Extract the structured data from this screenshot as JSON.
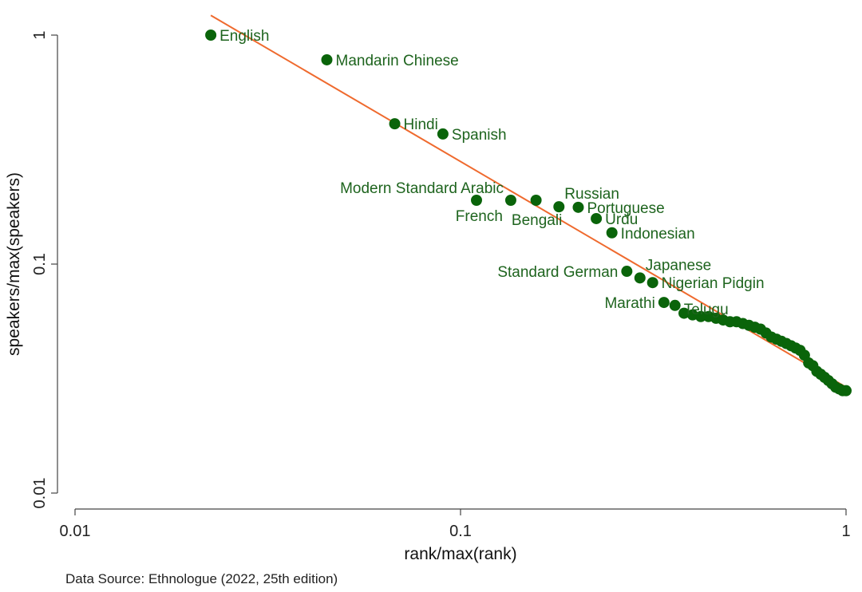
{
  "chart_data": {
    "type": "scatter",
    "xlabel": "rank/max(rank)",
    "ylabel": "speakers/max(speakers)",
    "x_scale": "log",
    "y_scale": "log",
    "xlim": [
      0.01,
      1
    ],
    "ylim": [
      0.01,
      1
    ],
    "x_ticks": [
      {
        "value": 0.01,
        "label": "0.01"
      },
      {
        "value": 0.1,
        "label": "0.1"
      },
      {
        "value": 1,
        "label": "1"
      }
    ],
    "y_ticks": [
      {
        "value": 0.01,
        "label": "0.01"
      },
      {
        "value": 0.1,
        "label": "0.1"
      },
      {
        "value": 1,
        "label": "1"
      }
    ],
    "grid": false,
    "colors": {
      "points": "#0a640a",
      "labels": "#1e641e",
      "fit_line": "#ef6a2e"
    },
    "labeled_points": [
      {
        "label": "English",
        "x": 0.0225,
        "y": 1.0,
        "anchor": "start"
      },
      {
        "label": "Mandarin Chinese",
        "x": 0.045,
        "y": 0.78,
        "anchor": "start"
      },
      {
        "label": "Hindi",
        "x": 0.0675,
        "y": 0.41,
        "anchor": "start"
      },
      {
        "label": "Spanish",
        "x": 0.09,
        "y": 0.37,
        "anchor": "start"
      },
      {
        "label": "Modern Standard Arabic",
        "x": 0.11,
        "y": 0.19,
        "anchor": "above-end"
      },
      {
        "label": "French",
        "x": 0.135,
        "y": 0.19,
        "anchor": "below-end"
      },
      {
        "label": "Bengali",
        "x": 0.157,
        "y": 0.19,
        "anchor": "below"
      },
      {
        "label": "Russian",
        "x": 0.18,
        "y": 0.178,
        "anchor": "above-start"
      },
      {
        "label": "Portuguese",
        "x": 0.202,
        "y": 0.177,
        "anchor": "start"
      },
      {
        "label": "Urdu",
        "x": 0.225,
        "y": 0.158,
        "anchor": "start"
      },
      {
        "label": "Indonesian",
        "x": 0.247,
        "y": 0.137,
        "anchor": "start"
      },
      {
        "label": "Standard German",
        "x": 0.27,
        "y": 0.093,
        "anchor": "end"
      },
      {
        "label": "Japanese",
        "x": 0.292,
        "y": 0.087,
        "anchor": "above-start"
      },
      {
        "label": "Nigerian Pidgin",
        "x": 0.315,
        "y": 0.083,
        "anchor": "start"
      },
      {
        "label": "Marathi",
        "x": 0.337,
        "y": 0.068,
        "anchor": "end"
      },
      {
        "label": "Telugu",
        "x": 0.36,
        "y": 0.066,
        "anchor": "below-start"
      }
    ],
    "other_points": [
      [
        0.38,
        0.061
      ],
      [
        0.4,
        0.06
      ],
      [
        0.42,
        0.059
      ],
      [
        0.44,
        0.059
      ],
      [
        0.46,
        0.058
      ],
      [
        0.48,
        0.057
      ],
      [
        0.5,
        0.056
      ],
      [
        0.52,
        0.056
      ],
      [
        0.54,
        0.055
      ],
      [
        0.56,
        0.054
      ],
      [
        0.58,
        0.053
      ],
      [
        0.6,
        0.052
      ],
      [
        0.62,
        0.05
      ],
      [
        0.64,
        0.048
      ],
      [
        0.66,
        0.047
      ],
      [
        0.68,
        0.046
      ],
      [
        0.7,
        0.045
      ],
      [
        0.72,
        0.044
      ],
      [
        0.74,
        0.043
      ],
      [
        0.76,
        0.042
      ],
      [
        0.78,
        0.04
      ],
      [
        0.8,
        0.037
      ],
      [
        0.82,
        0.036
      ],
      [
        0.84,
        0.034
      ],
      [
        0.86,
        0.033
      ],
      [
        0.88,
        0.032
      ],
      [
        0.9,
        0.031
      ],
      [
        0.92,
        0.03
      ],
      [
        0.94,
        0.029
      ],
      [
        0.96,
        0.0285
      ],
      [
        0.98,
        0.028
      ],
      [
        1.0,
        0.028
      ]
    ],
    "fit_line": {
      "x": [
        0.0225,
        1.0
      ],
      "y": [
        1.22,
        0.029
      ]
    }
  },
  "footnote": "Data Source: Ethnologue (2022, 25th edition)"
}
